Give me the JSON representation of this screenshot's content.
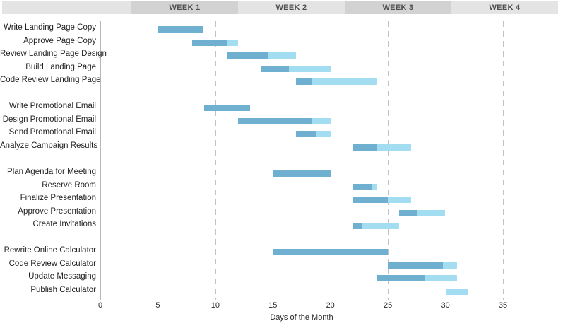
{
  "header": {
    "weeks": [
      {
        "label": "WEEK 1"
      },
      {
        "label": "WEEK 2"
      },
      {
        "label": "WEEK 3"
      },
      {
        "label": "WEEK 4"
      }
    ]
  },
  "chart_data": {
    "type": "bar",
    "subtype": "gantt",
    "title": "",
    "xlabel": "Days of the Month",
    "ylabel": "",
    "x_ticks": [
      0,
      5,
      10,
      15,
      20,
      25,
      30,
      35
    ],
    "xlim": [
      0,
      35
    ],
    "grid": "dashed-vertical",
    "legend": "none",
    "colors": {
      "completed": "#6fafd0",
      "remaining": "#a3ddf2",
      "header_light": "#e4e4e4",
      "header_dark": "#d2d2d2"
    },
    "groups": [
      {
        "name": "landing-page",
        "tasks": [
          {
            "label": "Write Landing Page Copy",
            "start": 5,
            "end": 9,
            "pct_complete": 100
          },
          {
            "label": "Approve Page Copy",
            "start": 8,
            "end": 12,
            "pct_complete": 75
          },
          {
            "label": "Review Landing Page Design",
            "start": 11,
            "end": 17,
            "pct_complete": 60
          },
          {
            "label": "Build Landing Page",
            "start": 14,
            "end": 20,
            "pct_complete": 40
          },
          {
            "label": "Code Review Landing Page",
            "start": 17,
            "end": 24,
            "pct_complete": 20
          }
        ]
      },
      {
        "name": "promotional-email",
        "tasks": [
          {
            "label": "Write Promotional Email",
            "start": 9,
            "end": 13,
            "pct_complete": 100
          },
          {
            "label": "Design Promotional Email",
            "start": 12,
            "end": 20,
            "pct_complete": 80
          },
          {
            "label": "Send Promotional Email",
            "start": 17,
            "end": 20,
            "pct_complete": 60
          },
          {
            "label": "Analyze Campaign Results",
            "start": 22,
            "end": 27,
            "pct_complete": 40
          }
        ]
      },
      {
        "name": "meeting",
        "tasks": [
          {
            "label": "Plan Agenda for Meeting",
            "start": 15,
            "end": 20,
            "pct_complete": 100
          },
          {
            "label": "Reserve Room",
            "start": 22,
            "end": 24,
            "pct_complete": 80
          },
          {
            "label": "Finalize Presentation",
            "start": 22,
            "end": 27,
            "pct_complete": 60
          },
          {
            "label": "Approve Presentation",
            "start": 26,
            "end": 30,
            "pct_complete": 40
          },
          {
            "label": "Create Invitations",
            "start": 22,
            "end": 26,
            "pct_complete": 20
          }
        ]
      },
      {
        "name": "calculator",
        "tasks": [
          {
            "label": "Rewrite Online Calculator",
            "start": 15,
            "end": 25,
            "pct_complete": 100
          },
          {
            "label": "Code Review Calculator",
            "start": 25,
            "end": 31,
            "pct_complete": 80
          },
          {
            "label": "Update Messaging",
            "start": 24,
            "end": 31,
            "pct_complete": 60
          },
          {
            "label": "Publish Calculator",
            "start": 30,
            "end": 32,
            "pct_complete": 0
          }
        ]
      }
    ]
  }
}
